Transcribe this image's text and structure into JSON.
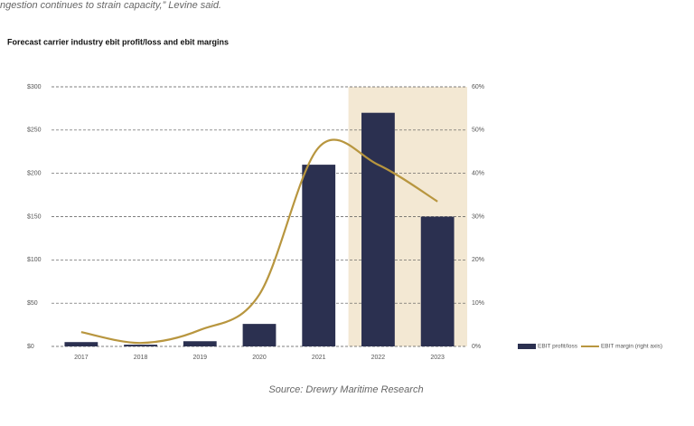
{
  "intro_text": "ngestion continues to strain capacity,” Levine said.",
  "chart_data": {
    "type": "bar+line",
    "title": "Forecast carrier industry ebit profit/loss and ebit margins",
    "categories": [
      "2017",
      "2018",
      "2019",
      "2020",
      "2021",
      "2022",
      "2023"
    ],
    "series": [
      {
        "name": "EBIT profit/loss",
        "type": "bar",
        "color": "#2b3050",
        "values": [
          5,
          2,
          6,
          26,
          210,
          270,
          150
        ]
      },
      {
        "name": "EBIT margin (right axis)",
        "type": "line",
        "axis": "y2",
        "color": "#b8963f",
        "values": [
          3.3,
          0.8,
          3.8,
          12,
          46,
          42,
          33.5
        ]
      }
    ],
    "ylim": [
      0,
      300
    ],
    "yticks": [
      {
        "value": 0,
        "label": "$0"
      },
      {
        "value": 50,
        "label": "$50"
      },
      {
        "value": 100,
        "label": "$100"
      },
      {
        "value": 150,
        "label": "$150"
      },
      {
        "value": 200,
        "label": "$200"
      },
      {
        "value": 250,
        "label": "$250"
      },
      {
        "value": 300,
        "label": "$300"
      }
    ],
    "y2lim": [
      0,
      60
    ],
    "y2ticks": [
      {
        "value": 0,
        "label": "0%"
      },
      {
        "value": 10,
        "label": "10%"
      },
      {
        "value": 20,
        "label": "20%"
      },
      {
        "value": 30,
        "label": "30%"
      },
      {
        "value": 40,
        "label": "40%"
      },
      {
        "value": 50,
        "label": "50%"
      },
      {
        "value": 60,
        "label": "60%"
      }
    ],
    "grid": true,
    "highlight": {
      "color": "#f3e8d3",
      "categories": [
        "2022",
        "2023"
      ]
    },
    "legend": "bottom-right",
    "source": "Source: Drewry Maritime Research"
  }
}
